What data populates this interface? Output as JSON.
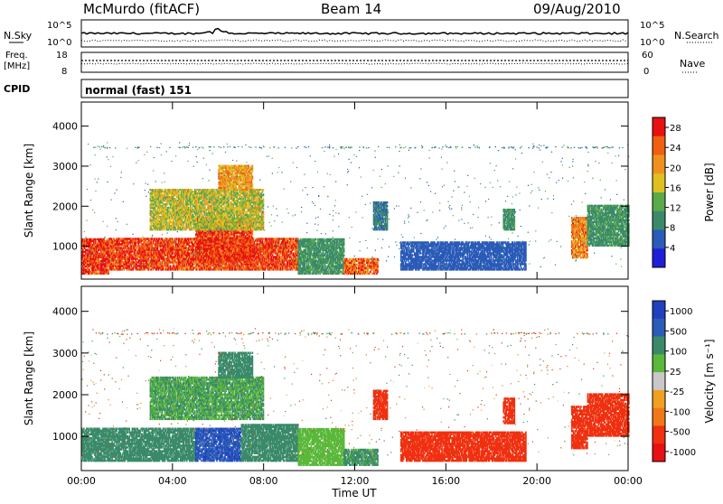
{
  "header": {
    "station": "McMurdo (fitACF)",
    "beam": "Beam 14",
    "date": "09/Aug/2010"
  },
  "strip_labels": {
    "nsky": "N.Sky",
    "nsearch": "N.Search",
    "freq_top": "Freq.",
    "freq_unit": "[MHz]",
    "nave": "Nave",
    "cpid": "CPID",
    "cpid_value": "normal (fast) 151"
  },
  "strip_ticks": {
    "noise_left": [
      "10^5",
      "10^0"
    ],
    "noise_right": [
      "10^5",
      "10^0"
    ],
    "freq_left": [
      "18",
      "8"
    ],
    "freq_right": [
      "60",
      "0"
    ]
  },
  "colors": {
    "power_scale": [
      "#1f1fd8",
      "#2a5bb8",
      "#3a8a6a",
      "#5aaa4a",
      "#e0c020",
      "#f09020",
      "#f06010",
      "#e81010"
    ],
    "velocity_scale": [
      "#e81010",
      "#f03010",
      "#f07818",
      "#f0a020",
      "#c8c8c8",
      "#5ab83a",
      "#3a8a6a",
      "#2a5bb8",
      "#2040c0"
    ]
  },
  "chart_data": [
    {
      "type": "heatmap",
      "name": "power-panel",
      "ylabel": "Slant Range [km]",
      "xlabel": "",
      "x_ticks": [
        "00:00",
        "04:00",
        "08:00",
        "12:00",
        "16:00",
        "20:00",
        "00:00"
      ],
      "y_ticks": [
        1000,
        2000,
        3000,
        4000
      ],
      "xlim_hours": [
        0,
        24
      ],
      "ylim": [
        180,
        4600
      ],
      "colorbar": {
        "label": "Power [dB]",
        "ticks": [
          "4",
          "8",
          "12",
          "16",
          "20",
          "24",
          "28"
        ],
        "range": [
          0,
          30
        ]
      },
      "regions": [
        {
          "t0": 0.0,
          "t1": 1.2,
          "r0": 300,
          "r1": 1200,
          "value": 28
        },
        {
          "t0": 1.2,
          "t1": 9.5,
          "r0": 400,
          "r1": 1200,
          "value": 26
        },
        {
          "t0": 5.0,
          "t1": 7.5,
          "r0": 600,
          "r1": 1700,
          "value": 27
        },
        {
          "t0": 3.0,
          "t1": 8.0,
          "r0": 1400,
          "r1": 2400,
          "value": 16
        },
        {
          "t0": 6.0,
          "t1": 7.5,
          "r0": 2400,
          "r1": 3000,
          "value": 20
        },
        {
          "t0": 9.5,
          "t1": 11.5,
          "r0": 300,
          "r1": 1200,
          "value": 10
        },
        {
          "t0": 11.5,
          "t1": 13.0,
          "r0": 300,
          "r1": 700,
          "value": 24
        },
        {
          "t0": 12.8,
          "t1": 13.4,
          "r0": 1400,
          "r1": 2100,
          "value": 8
        },
        {
          "t0": 14.0,
          "t1": 19.5,
          "r0": 400,
          "r1": 1100,
          "value": 6
        },
        {
          "t0": 18.5,
          "t1": 19.0,
          "r0": 1400,
          "r1": 1900,
          "value": 10
        },
        {
          "t0": 21.5,
          "t1": 22.2,
          "r0": 700,
          "r1": 1700,
          "value": 22
        },
        {
          "t0": 22.2,
          "t1": 24.0,
          "r0": 1000,
          "r1": 2000,
          "value": 10
        }
      ]
    },
    {
      "type": "heatmap",
      "name": "velocity-panel",
      "ylabel": "Slant Range [km]",
      "xlabel": "Time UT",
      "x_ticks": [
        "00:00",
        "04:00",
        "08:00",
        "12:00",
        "16:00",
        "20:00",
        "00:00"
      ],
      "y_ticks": [
        1000,
        2000,
        3000,
        4000
      ],
      "xlim_hours": [
        0,
        24
      ],
      "ylim": [
        180,
        4600
      ],
      "colorbar": {
        "label": "Velocity [m s⁻¹]",
        "ticks": [
          "1000",
          "500",
          "100",
          "25",
          "-25",
          "-100",
          "-500",
          "-1000"
        ],
        "range": [
          -1000,
          1000
        ]
      },
      "regions": [
        {
          "t0": 0.0,
          "t1": 5.0,
          "r0": 400,
          "r1": 1200,
          "value": 300
        },
        {
          "t0": 5.0,
          "t1": 7.0,
          "r0": 400,
          "r1": 1200,
          "value": 900
        },
        {
          "t0": 7.0,
          "t1": 9.5,
          "r0": 400,
          "r1": 1300,
          "value": 200
        },
        {
          "t0": 3.0,
          "t1": 8.0,
          "r0": 1400,
          "r1": 2400,
          "value": 100
        },
        {
          "t0": 6.0,
          "t1": 7.5,
          "r0": 2400,
          "r1": 3000,
          "value": 150
        },
        {
          "t0": 9.5,
          "t1": 11.5,
          "r0": 300,
          "r1": 1200,
          "value": 60
        },
        {
          "t0": 11.5,
          "t1": 13.0,
          "r0": 300,
          "r1": 700,
          "value": 120
        },
        {
          "t0": 12.8,
          "t1": 13.4,
          "r0": 1400,
          "r1": 2100,
          "value": -200
        },
        {
          "t0": 14.0,
          "t1": 19.5,
          "r0": 400,
          "r1": 1100,
          "value": -250
        },
        {
          "t0": 18.5,
          "t1": 19.0,
          "r0": 1300,
          "r1": 1900,
          "value": -300
        },
        {
          "t0": 21.5,
          "t1": 22.2,
          "r0": 700,
          "r1": 1700,
          "value": -200
        },
        {
          "t0": 22.2,
          "t1": 24.0,
          "r0": 1000,
          "r1": 2000,
          "value": -300
        }
      ]
    }
  ]
}
